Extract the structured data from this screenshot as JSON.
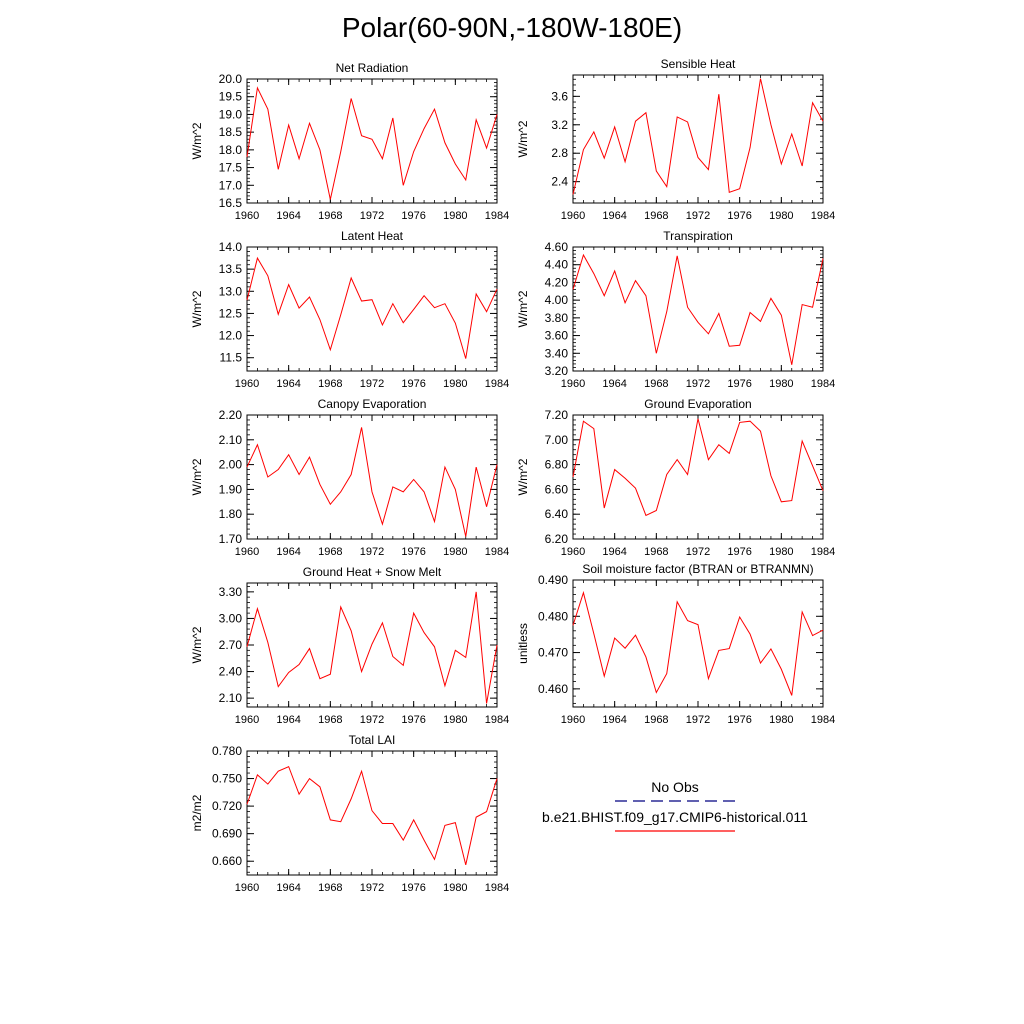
{
  "title": "Polar(60-90N,-180W-180E)",
  "legend": {
    "items": [
      {
        "label": "No Obs",
        "color": "#000080",
        "dash": true
      },
      {
        "label": "b.e21.BHIST.f09_g17.CMIP6-historical.011",
        "color": "#ff0000",
        "dash": false
      }
    ]
  },
  "chart_data": [
    {
      "type": "line",
      "title": "Net Radiation",
      "ylabel": "W/m^2",
      "x": [
        1960,
        1961,
        1962,
        1963,
        1964,
        1965,
        1966,
        1967,
        1968,
        1969,
        1970,
        1971,
        1972,
        1973,
        1974,
        1975,
        1976,
        1977,
        1978,
        1979,
        1980,
        1981,
        1982,
        1983,
        1984
      ],
      "xlim": [
        1960,
        1984
      ],
      "xticks": [
        1960,
        1964,
        1968,
        1972,
        1976,
        1980,
        1984
      ],
      "ylim": [
        16.5,
        20.0
      ],
      "yticks": [
        16.5,
        17.0,
        17.5,
        18.0,
        18.5,
        19.0,
        19.5,
        20.0
      ],
      "ydecimals": 1,
      "series": [
        {
          "color": "#ff0000",
          "values": [
            17.8,
            19.75,
            19.15,
            17.45,
            18.7,
            17.75,
            18.75,
            18.0,
            16.6,
            17.95,
            19.45,
            18.4,
            18.3,
            17.75,
            18.9,
            17.0,
            17.95,
            18.6,
            19.15,
            18.2,
            17.6,
            17.15,
            18.85,
            18.05,
            19.0
          ]
        }
      ]
    },
    {
      "type": "line",
      "title": "Sensible Heat",
      "ylabel": "W/m^2",
      "x": [
        1960,
        1961,
        1962,
        1963,
        1964,
        1965,
        1966,
        1967,
        1968,
        1969,
        1970,
        1971,
        1972,
        1973,
        1974,
        1975,
        1976,
        1977,
        1978,
        1979,
        1980,
        1981,
        1982,
        1983,
        1984
      ],
      "xlim": [
        1960,
        1984
      ],
      "xticks": [
        1960,
        1964,
        1968,
        1972,
        1976,
        1980,
        1984
      ],
      "ylim": [
        2.1,
        3.9
      ],
      "yticks": [
        2.4,
        2.8,
        3.2,
        3.6
      ],
      "ydecimals": 1,
      "series": [
        {
          "color": "#ff0000",
          "values": [
            2.22,
            2.85,
            3.1,
            2.73,
            3.17,
            2.68,
            3.25,
            3.37,
            2.55,
            2.33,
            3.31,
            3.24,
            2.74,
            2.57,
            3.63,
            2.25,
            2.3,
            2.88,
            3.85,
            3.2,
            2.65,
            3.07,
            2.62,
            3.51,
            3.25
          ]
        }
      ]
    },
    {
      "type": "line",
      "title": "Latent Heat",
      "ylabel": "W/m^2",
      "x": [
        1960,
        1961,
        1962,
        1963,
        1964,
        1965,
        1966,
        1967,
        1968,
        1969,
        1970,
        1971,
        1972,
        1973,
        1974,
        1975,
        1976,
        1977,
        1978,
        1979,
        1980,
        1981,
        1982,
        1983,
        1984
      ],
      "xlim": [
        1960,
        1984
      ],
      "xticks": [
        1960,
        1964,
        1968,
        1972,
        1976,
        1980,
        1984
      ],
      "ylim": [
        11.2,
        14.0
      ],
      "yticks": [
        11.5,
        12.0,
        12.5,
        13.0,
        13.5,
        14.0
      ],
      "ydecimals": 1,
      "series": [
        {
          "color": "#ff0000",
          "values": [
            12.8,
            13.75,
            13.35,
            12.48,
            13.15,
            12.62,
            12.87,
            12.36,
            11.68,
            12.47,
            13.3,
            12.78,
            12.81,
            12.24,
            12.72,
            12.29,
            12.59,
            12.9,
            12.63,
            12.72,
            12.28,
            11.48,
            12.94,
            12.54,
            13.05
          ]
        }
      ]
    },
    {
      "type": "line",
      "title": "Transpiration",
      "ylabel": "W/m^2",
      "x": [
        1960,
        1961,
        1962,
        1963,
        1964,
        1965,
        1966,
        1967,
        1968,
        1969,
        1970,
        1971,
        1972,
        1973,
        1974,
        1975,
        1976,
        1977,
        1978,
        1979,
        1980,
        1981,
        1982,
        1983,
        1984
      ],
      "xlim": [
        1960,
        1984
      ],
      "xticks": [
        1960,
        1964,
        1968,
        1972,
        1976,
        1980,
        1984
      ],
      "ylim": [
        3.2,
        4.6
      ],
      "yticks": [
        3.2,
        3.4,
        3.6,
        3.8,
        4.0,
        4.2,
        4.4,
        4.6
      ],
      "ydecimals": 2,
      "series": [
        {
          "color": "#ff0000",
          "values": [
            4.12,
            4.51,
            4.3,
            4.05,
            4.33,
            3.97,
            4.22,
            4.05,
            3.4,
            3.87,
            4.5,
            3.92,
            3.75,
            3.62,
            3.85,
            3.48,
            3.49,
            3.86,
            3.76,
            4.02,
            3.83,
            3.27,
            3.95,
            3.92,
            4.47
          ]
        }
      ]
    },
    {
      "type": "line",
      "title": "Canopy Evaporation",
      "ylabel": "W/m^2",
      "x": [
        1960,
        1961,
        1962,
        1963,
        1964,
        1965,
        1966,
        1967,
        1968,
        1969,
        1970,
        1971,
        1972,
        1973,
        1974,
        1975,
        1976,
        1977,
        1978,
        1979,
        1980,
        1981,
        1982,
        1983,
        1984
      ],
      "xlim": [
        1960,
        1984
      ],
      "xticks": [
        1960,
        1964,
        1968,
        1972,
        1976,
        1980,
        1984
      ],
      "ylim": [
        1.7,
        2.2
      ],
      "yticks": [
        1.7,
        1.8,
        1.9,
        2.0,
        2.1,
        2.2
      ],
      "ydecimals": 2,
      "series": [
        {
          "color": "#ff0000",
          "values": [
            1.99,
            2.08,
            1.95,
            1.98,
            2.04,
            1.96,
            2.03,
            1.92,
            1.84,
            1.89,
            1.96,
            2.15,
            1.89,
            1.76,
            1.91,
            1.89,
            1.94,
            1.89,
            1.77,
            1.99,
            1.9,
            1.71,
            1.99,
            1.83,
            2.0
          ]
        }
      ]
    },
    {
      "type": "line",
      "title": "Ground Evaporation",
      "ylabel": "W/m^2",
      "x": [
        1960,
        1961,
        1962,
        1963,
        1964,
        1965,
        1966,
        1967,
        1968,
        1969,
        1970,
        1971,
        1972,
        1973,
        1974,
        1975,
        1976,
        1977,
        1978,
        1979,
        1980,
        1981,
        1982,
        1983,
        1984
      ],
      "xlim": [
        1960,
        1984
      ],
      "xticks": [
        1960,
        1964,
        1968,
        1972,
        1976,
        1980,
        1984
      ],
      "ylim": [
        6.2,
        7.2
      ],
      "yticks": [
        6.2,
        6.4,
        6.6,
        6.8,
        7.0,
        7.2
      ],
      "ydecimals": 2,
      "series": [
        {
          "color": "#ff0000",
          "values": [
            6.7,
            7.15,
            7.09,
            6.45,
            6.76,
            6.69,
            6.61,
            6.39,
            6.43,
            6.72,
            6.84,
            6.72,
            7.17,
            6.84,
            6.96,
            6.89,
            7.14,
            7.15,
            7.07,
            6.71,
            6.5,
            6.51,
            6.99,
            6.79,
            6.59
          ]
        }
      ]
    },
    {
      "type": "line",
      "title": "Ground Heat + Snow Melt",
      "ylabel": "W/m^2",
      "x": [
        1960,
        1961,
        1962,
        1963,
        1964,
        1965,
        1966,
        1967,
        1968,
        1969,
        1970,
        1971,
        1972,
        1973,
        1974,
        1975,
        1976,
        1977,
        1978,
        1979,
        1980,
        1981,
        1982,
        1983,
        1984
      ],
      "xlim": [
        1960,
        1984
      ],
      "xticks": [
        1960,
        1964,
        1968,
        1972,
        1976,
        1980,
        1984
      ],
      "ylim": [
        2.0,
        3.4
      ],
      "yticks": [
        2.1,
        2.4,
        2.7,
        3.0,
        3.3
      ],
      "ydecimals": 2,
      "series": [
        {
          "color": "#ff0000",
          "values": [
            2.68,
            3.11,
            2.73,
            2.23,
            2.39,
            2.48,
            2.66,
            2.32,
            2.37,
            3.13,
            2.86,
            2.4,
            2.71,
            2.95,
            2.57,
            2.47,
            3.06,
            2.84,
            2.68,
            2.24,
            2.64,
            2.56,
            3.3,
            2.04,
            2.7
          ]
        }
      ]
    },
    {
      "type": "line",
      "title": "Soil moisture factor (BTRAN or BTRANMN)",
      "ylabel": "unitless",
      "x": [
        1960,
        1961,
        1962,
        1963,
        1964,
        1965,
        1966,
        1967,
        1968,
        1969,
        1970,
        1971,
        1972,
        1973,
        1974,
        1975,
        1976,
        1977,
        1978,
        1979,
        1980,
        1981,
        1982,
        1983,
        1984
      ],
      "xlim": [
        1960,
        1984
      ],
      "xticks": [
        1960,
        1964,
        1968,
        1972,
        1976,
        1980,
        1984
      ],
      "ylim": [
        0.455,
        0.49
      ],
      "yticks": [
        0.46,
        0.47,
        0.48,
        0.49
      ],
      "ydecimals": 3,
      "series": [
        {
          "color": "#ff0000",
          "values": [
            0.4775,
            0.4865,
            0.4752,
            0.4635,
            0.474,
            0.4712,
            0.4748,
            0.4688,
            0.459,
            0.4642,
            0.484,
            0.4788,
            0.4777,
            0.4628,
            0.4706,
            0.4711,
            0.4798,
            0.4751,
            0.4671,
            0.471,
            0.4654,
            0.4582,
            0.4812,
            0.4747,
            0.4762
          ]
        }
      ]
    },
    {
      "type": "line",
      "title": "Total LAI",
      "ylabel": "m2/m2",
      "x": [
        1960,
        1961,
        1962,
        1963,
        1964,
        1965,
        1966,
        1967,
        1968,
        1969,
        1970,
        1971,
        1972,
        1973,
        1974,
        1975,
        1976,
        1977,
        1978,
        1979,
        1980,
        1981,
        1982,
        1983,
        1984
      ],
      "xlim": [
        1960,
        1984
      ],
      "xticks": [
        1960,
        1964,
        1968,
        1972,
        1976,
        1980,
        1984
      ],
      "ylim": [
        0.645,
        0.78
      ],
      "yticks": [
        0.66,
        0.69,
        0.72,
        0.75,
        0.78
      ],
      "ydecimals": 3,
      "series": [
        {
          "color": "#ff0000",
          "values": [
            0.722,
            0.754,
            0.744,
            0.758,
            0.763,
            0.733,
            0.75,
            0.741,
            0.705,
            0.703,
            0.728,
            0.758,
            0.715,
            0.701,
            0.701,
            0.683,
            0.705,
            0.683,
            0.662,
            0.699,
            0.702,
            0.656,
            0.708,
            0.714,
            0.75
          ]
        }
      ]
    }
  ]
}
